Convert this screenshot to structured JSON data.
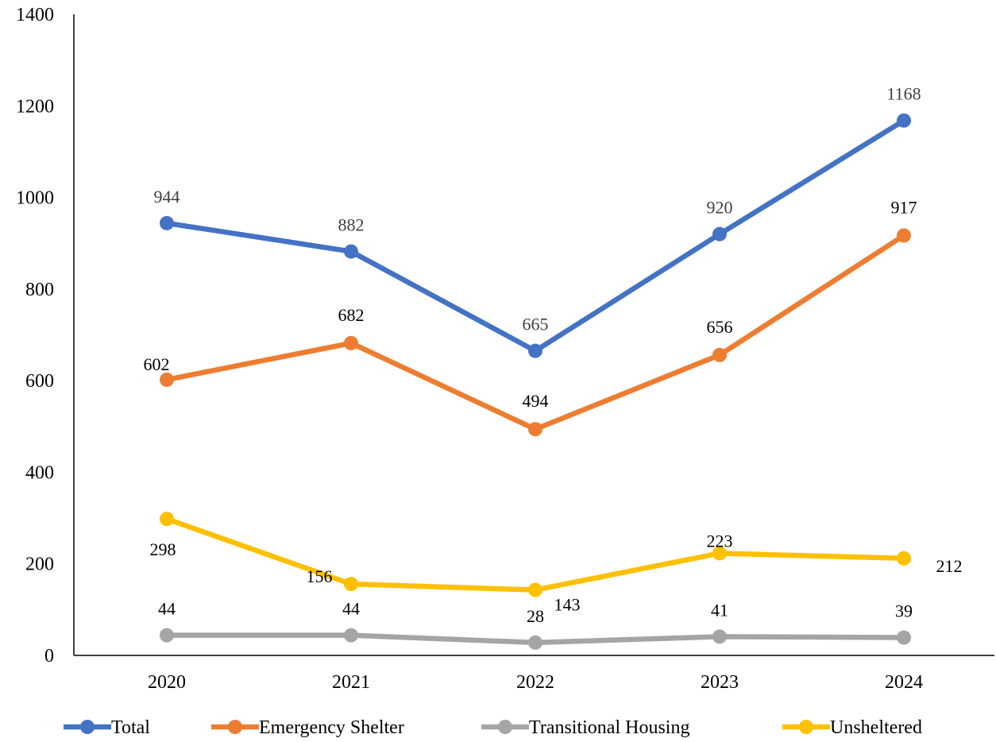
{
  "chart_data": {
    "type": "line",
    "title": "",
    "xlabel": "",
    "ylabel": "",
    "categories": [
      "2020",
      "2021",
      "2022",
      "2023",
      "2024"
    ],
    "ylim": [
      0,
      1400
    ],
    "yticks": [
      "0",
      "200",
      "400",
      "600",
      "800",
      "1000",
      "1200",
      "1400"
    ],
    "grid": false,
    "legend_position": "bottom",
    "data_labels": true,
    "series": [
      {
        "name": "Total",
        "color": "#4472C4",
        "values": [
          944,
          882,
          665,
          920,
          1168
        ],
        "labels": [
          "944",
          "882",
          "665",
          "920",
          "1168"
        ]
      },
      {
        "name": "Emergency Shelter",
        "color": "#ED7D31",
        "values": [
          602,
          682,
          494,
          656,
          917
        ],
        "labels": [
          "602",
          "682",
          "494",
          "656",
          "917"
        ]
      },
      {
        "name": "Transitional Housing",
        "color": "#A5A5A5",
        "values": [
          44,
          44,
          28,
          41,
          39
        ],
        "labels": [
          "44",
          "44",
          "28",
          "41",
          "39"
        ]
      },
      {
        "name": "Unsheltered",
        "color": "#FFC000",
        "values": [
          298,
          156,
          143,
          223,
          212
        ],
        "labels": [
          "298",
          "156",
          "143",
          "223",
          "212"
        ]
      }
    ]
  }
}
